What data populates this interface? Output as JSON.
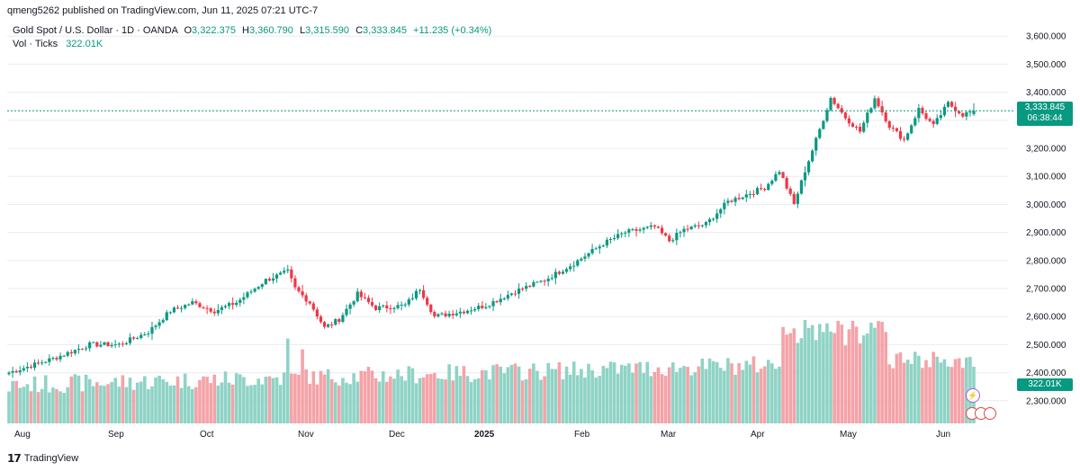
{
  "header": {
    "published": "qmeng5262 published on TradingView.com, Jun 11, 2025 07:21 UTC-7",
    "symbol": "Gold Spot / U.S. Dollar · 1D · OANDA",
    "o_label": "O",
    "o_value": "3,322.375",
    "h_label": "H",
    "h_value": "3,360.790",
    "l_label": "L",
    "l_value": "3,315.590",
    "c_label": "C",
    "c_value": "3,333.845",
    "change": "+11.235 (+0.34%)",
    "vol_label": "Vol · Ticks",
    "vol_value": "322.01K"
  },
  "price_tag": {
    "price": "3,333.845",
    "countdown": "06:38:44"
  },
  "vol_tag": "322.01K",
  "bolt_icon": "⚡",
  "brand": {
    "logo": "𝟭𝟳",
    "name": "TradingView"
  },
  "colors": {
    "up": "#089981",
    "down": "#f23645",
    "vol_up": "#8fd3c5",
    "vol_down": "#f4a3a8",
    "grid": "#e9ecf1"
  },
  "chart_data": {
    "type": "candlestick",
    "title": "Gold Spot / U.S. Dollar · 1D · OANDA",
    "y_axis_ticks": [
      "3,600.000",
      "3,500.000",
      "3,400.000",
      "3,300.000",
      "3,200.000",
      "3,100.000",
      "3,000.000",
      "2,900.000",
      "2,800.000",
      "2,700.000",
      "2,600.000",
      "2,500.000",
      "2,400.000",
      "2,300.000"
    ],
    "ylim": [
      2280,
      3620
    ],
    "x_axis_labels": [
      "Aug",
      "Sep",
      "Oct",
      "Nov",
      "Dec",
      "2025",
      "Feb",
      "Mar",
      "Apr",
      "May",
      "Jun"
    ],
    "anchors": [
      [
        0,
        2400
      ],
      [
        12,
        2450
      ],
      [
        22,
        2500
      ],
      [
        30,
        2500
      ],
      [
        38,
        2545
      ],
      [
        44,
        2620
      ],
      [
        50,
        2650
      ],
      [
        56,
        2620
      ],
      [
        62,
        2650
      ],
      [
        70,
        2730
      ],
      [
        76,
        2760
      ],
      [
        78,
        2700
      ],
      [
        82,
        2650
      ],
      [
        86,
        2560
      ],
      [
        90,
        2590
      ],
      [
        95,
        2680
      ],
      [
        100,
        2630
      ],
      [
        108,
        2640
      ],
      [
        112,
        2700
      ],
      [
        116,
        2600
      ],
      [
        124,
        2620
      ],
      [
        130,
        2640
      ],
      [
        138,
        2690
      ],
      [
        146,
        2730
      ],
      [
        154,
        2790
      ],
      [
        162,
        2860
      ],
      [
        168,
        2900
      ],
      [
        176,
        2920
      ],
      [
        180,
        2870
      ],
      [
        184,
        2910
      ],
      [
        190,
        2930
      ],
      [
        196,
        3010
      ],
      [
        202,
        3040
      ],
      [
        206,
        3060
      ],
      [
        210,
        3120
      ],
      [
        214,
        3000
      ],
      [
        217,
        3120
      ],
      [
        220,
        3230
      ],
      [
        224,
        3380
      ],
      [
        228,
        3310
      ],
      [
        232,
        3260
      ],
      [
        236,
        3380
      ],
      [
        240,
        3280
      ],
      [
        244,
        3230
      ],
      [
        248,
        3340
      ],
      [
        252,
        3280
      ],
      [
        256,
        3360
      ],
      [
        260,
        3320
      ],
      [
        263,
        3334
      ]
    ],
    "last_candle": {
      "open": 3322.375,
      "high": 3360.79,
      "low": 3315.59,
      "close": 3333.845
    },
    "volume_last": "322.01K"
  }
}
